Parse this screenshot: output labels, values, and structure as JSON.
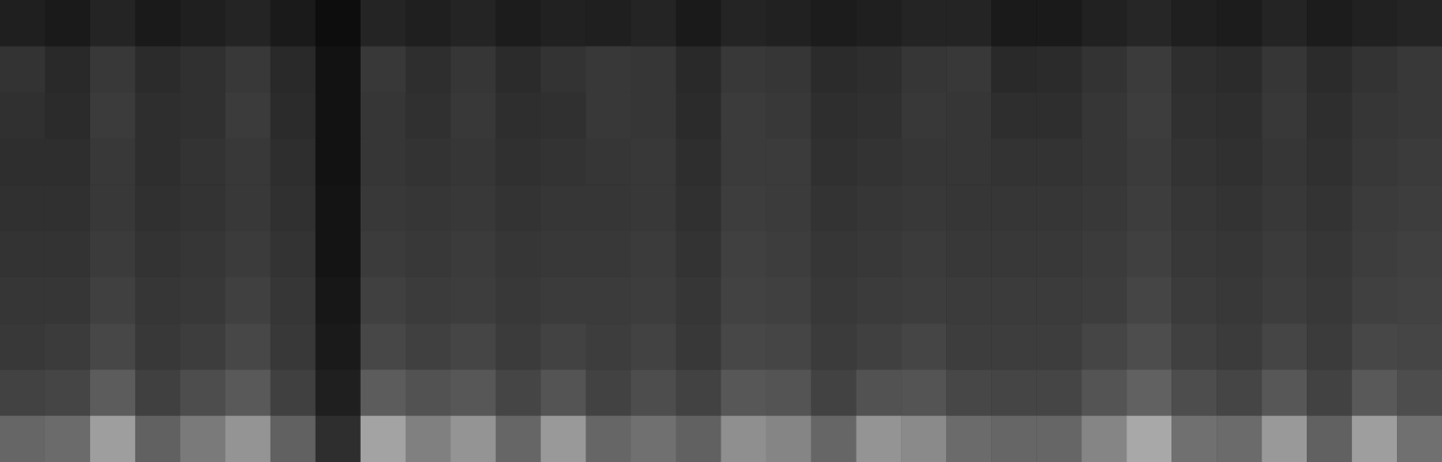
{
  "chart_data": {
    "type": "heatmap",
    "tick_labels": false,
    "zlim": [
      0,
      1
    ],
    "values": [
      [
        0.12,
        0.1,
        0.14,
        0.1,
        0.12,
        0.14,
        0.1,
        0.05,
        0.14,
        0.12,
        0.14,
        0.11,
        0.13,
        0.12,
        0.14,
        0.1,
        0.14,
        0.13,
        0.11,
        0.12,
        0.14,
        0.14,
        0.1,
        0.1,
        0.13,
        0.15,
        0.12,
        0.11,
        0.14,
        0.11,
        0.13,
        0.14
      ],
      [
        0.2,
        0.16,
        0.22,
        0.17,
        0.19,
        0.22,
        0.16,
        0.07,
        0.22,
        0.18,
        0.21,
        0.17,
        0.2,
        0.22,
        0.21,
        0.16,
        0.22,
        0.21,
        0.17,
        0.18,
        0.21,
        0.22,
        0.16,
        0.17,
        0.2,
        0.23,
        0.18,
        0.17,
        0.21,
        0.17,
        0.2,
        0.22
      ],
      [
        0.19,
        0.17,
        0.23,
        0.18,
        0.19,
        0.23,
        0.17,
        0.07,
        0.21,
        0.19,
        0.22,
        0.18,
        0.19,
        0.22,
        0.21,
        0.17,
        0.23,
        0.22,
        0.18,
        0.19,
        0.22,
        0.21,
        0.18,
        0.18,
        0.21,
        0.24,
        0.19,
        0.18,
        0.22,
        0.18,
        0.21,
        0.22
      ],
      [
        0.18,
        0.18,
        0.22,
        0.18,
        0.2,
        0.22,
        0.18,
        0.07,
        0.21,
        0.2,
        0.21,
        0.19,
        0.2,
        0.21,
        0.22,
        0.18,
        0.23,
        0.23,
        0.19,
        0.2,
        0.21,
        0.21,
        0.2,
        0.2,
        0.21,
        0.23,
        0.2,
        0.19,
        0.21,
        0.19,
        0.22,
        0.23
      ],
      [
        0.19,
        0.19,
        0.22,
        0.19,
        0.2,
        0.22,
        0.19,
        0.08,
        0.22,
        0.21,
        0.22,
        0.2,
        0.21,
        0.21,
        0.22,
        0.19,
        0.24,
        0.23,
        0.2,
        0.21,
        0.22,
        0.21,
        0.21,
        0.21,
        0.22,
        0.24,
        0.21,
        0.2,
        0.22,
        0.2,
        0.23,
        0.24
      ],
      [
        0.2,
        0.2,
        0.23,
        0.2,
        0.21,
        0.23,
        0.2,
        0.08,
        0.23,
        0.22,
        0.23,
        0.21,
        0.22,
        0.22,
        0.23,
        0.2,
        0.25,
        0.24,
        0.21,
        0.22,
        0.23,
        0.22,
        0.22,
        0.22,
        0.23,
        0.25,
        0.22,
        0.21,
        0.23,
        0.21,
        0.24,
        0.25
      ],
      [
        0.21,
        0.21,
        0.25,
        0.21,
        0.22,
        0.25,
        0.21,
        0.09,
        0.25,
        0.23,
        0.24,
        0.22,
        0.23,
        0.23,
        0.24,
        0.21,
        0.26,
        0.25,
        0.22,
        0.23,
        0.24,
        0.23,
        0.23,
        0.23,
        0.24,
        0.27,
        0.23,
        0.22,
        0.24,
        0.22,
        0.25,
        0.26
      ],
      [
        0.22,
        0.23,
        0.28,
        0.22,
        0.24,
        0.28,
        0.22,
        0.1,
        0.28,
        0.25,
        0.27,
        0.23,
        0.26,
        0.24,
        0.26,
        0.22,
        0.28,
        0.27,
        0.23,
        0.25,
        0.27,
        0.24,
        0.24,
        0.24,
        0.27,
        0.3,
        0.25,
        0.23,
        0.27,
        0.23,
        0.28,
        0.27
      ],
      [
        0.26,
        0.27,
        0.36,
        0.25,
        0.3,
        0.35,
        0.25,
        0.12,
        0.36,
        0.32,
        0.34,
        0.27,
        0.33,
        0.26,
        0.3,
        0.26,
        0.34,
        0.33,
        0.26,
        0.32,
        0.33,
        0.28,
        0.27,
        0.27,
        0.33,
        0.38,
        0.3,
        0.27,
        0.34,
        0.26,
        0.35,
        0.3
      ],
      [
        0.4,
        0.42,
        0.62,
        0.38,
        0.48,
        0.58,
        0.38,
        0.18,
        0.64,
        0.5,
        0.58,
        0.4,
        0.6,
        0.4,
        0.44,
        0.38,
        0.56,
        0.52,
        0.4,
        0.58,
        0.54,
        0.42,
        0.4,
        0.4,
        0.52,
        0.66,
        0.44,
        0.42,
        0.6,
        0.38,
        0.62,
        0.44
      ]
    ]
  }
}
